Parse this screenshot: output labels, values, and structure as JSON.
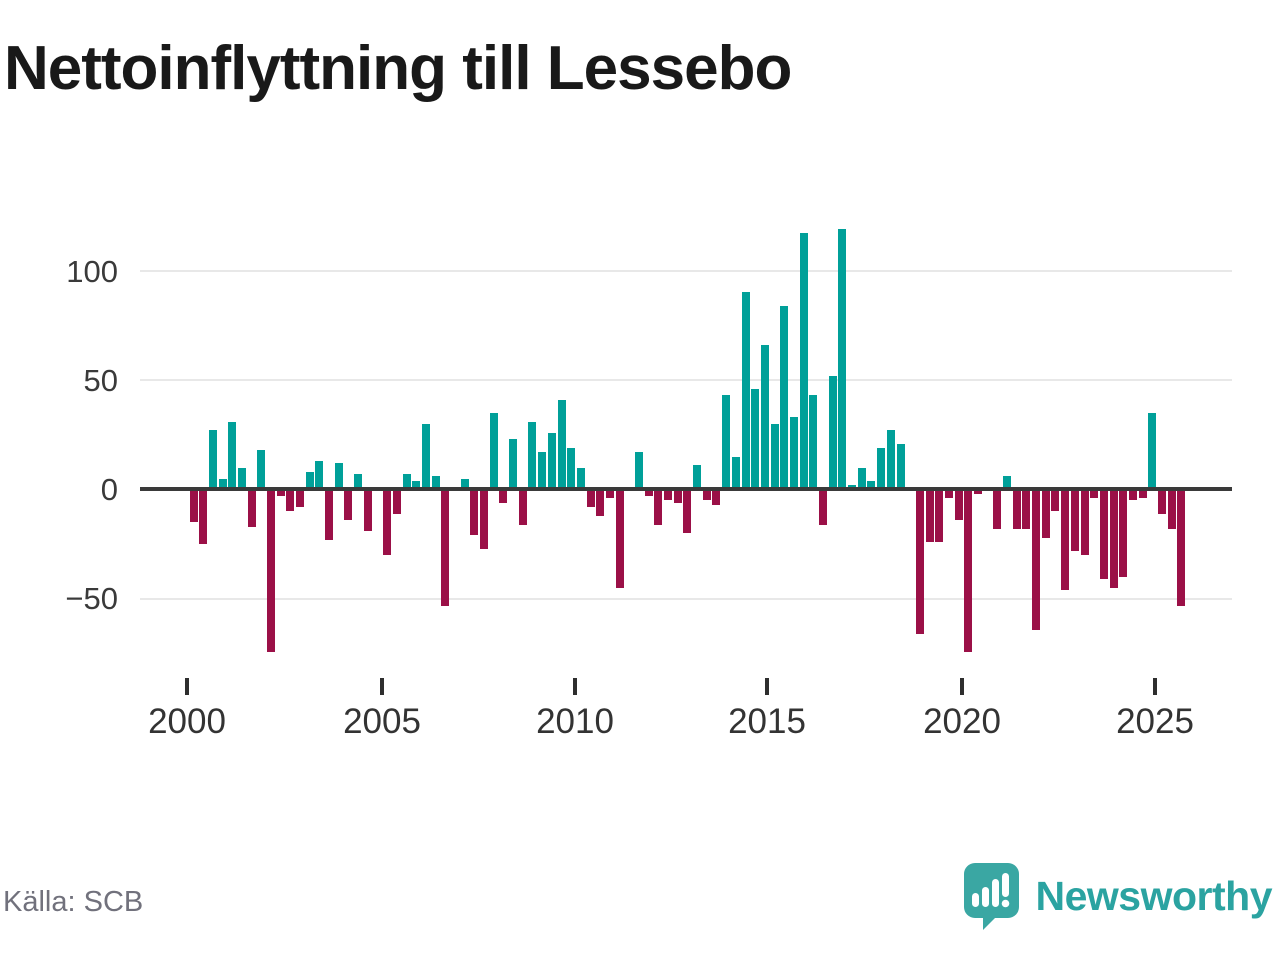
{
  "title": "Nettoinflyttning till Lessebo",
  "source": "Källa: SCB",
  "branding": {
    "logo_text": "Newsworthy",
    "logo_icon": "bar-chart-speech-bubble-icon"
  },
  "colors": {
    "positive": "#00a099",
    "negative": "#9b1047",
    "axis": "#3a3a3a",
    "grid": "#e8e8e8",
    "brand_teal": "#3aa7a3"
  },
  "chart_data": {
    "type": "bar",
    "title": "Nettoinflyttning till Lessebo",
    "xlabel": "",
    "ylabel": "",
    "frequency": "quarterly",
    "grid": "horizontal",
    "legend": "none",
    "ylim": [
      -80,
      128
    ],
    "y_ticks": [
      100,
      50,
      0,
      -50
    ],
    "y_tick_labels": [
      "100",
      "50",
      "0",
      "−50"
    ],
    "x_tick_labels": [
      "2000",
      "2005",
      "2010",
      "2015",
      "2020",
      "2025"
    ],
    "x_tick_years": [
      2000,
      2005,
      2010,
      2015,
      2020,
      2025
    ],
    "quarters": [
      "2000Q1",
      "2000Q2",
      "2000Q3",
      "2000Q4",
      "2001Q1",
      "2001Q2",
      "2001Q3",
      "2001Q4",
      "2002Q1",
      "2002Q2",
      "2002Q3",
      "2002Q4",
      "2003Q1",
      "2003Q2",
      "2003Q3",
      "2003Q4",
      "2004Q1",
      "2004Q2",
      "2004Q3",
      "2004Q4",
      "2005Q1",
      "2005Q2",
      "2005Q3",
      "2005Q4",
      "2006Q1",
      "2006Q2",
      "2006Q3",
      "2006Q4",
      "2007Q1",
      "2007Q2",
      "2007Q3",
      "2007Q4",
      "2008Q1",
      "2008Q2",
      "2008Q3",
      "2008Q4",
      "2009Q1",
      "2009Q2",
      "2009Q3",
      "2009Q4",
      "2010Q1",
      "2010Q2",
      "2010Q3",
      "2010Q4",
      "2011Q1",
      "2011Q2",
      "2011Q3",
      "2011Q4",
      "2012Q1",
      "2012Q2",
      "2012Q3",
      "2012Q4",
      "2013Q1",
      "2013Q2",
      "2013Q3",
      "2013Q4",
      "2014Q1",
      "2014Q2",
      "2014Q3",
      "2014Q4",
      "2015Q1",
      "2015Q2",
      "2015Q3",
      "2015Q4",
      "2016Q1",
      "2016Q2",
      "2016Q3",
      "2016Q4",
      "2017Q1",
      "2017Q2",
      "2017Q3",
      "2017Q4",
      "2018Q1",
      "2018Q2",
      "2018Q3",
      "2018Q4",
      "2019Q1",
      "2019Q2",
      "2019Q3",
      "2019Q4",
      "2020Q1",
      "2020Q2",
      "2020Q3",
      "2020Q4",
      "2021Q1",
      "2021Q2",
      "2021Q3",
      "2021Q4",
      "2022Q1",
      "2022Q2",
      "2022Q3",
      "2022Q4",
      "2023Q1",
      "2023Q2",
      "2023Q3",
      "2023Q4",
      "2024Q1",
      "2024Q2",
      "2024Q3",
      "2024Q4",
      "2025Q1",
      "2025Q2",
      "2025Q3"
    ],
    "values": [
      -15,
      -25,
      27,
      5,
      31,
      10,
      -17,
      18,
      -74,
      -3,
      -10,
      -8,
      8,
      13,
      -23,
      12,
      -14,
      7,
      -19,
      0,
      -30,
      -11,
      7,
      4,
      30,
      6,
      -53,
      0,
      5,
      -21,
      -27,
      35,
      -6,
      23,
      -16,
      31,
      17,
      26,
      41,
      19,
      10,
      -8,
      -12,
      -4,
      -45,
      0,
      17,
      -3,
      -16,
      -5,
      -6,
      -20,
      11,
      -5,
      -7,
      43,
      15,
      90,
      46,
      66,
      30,
      84,
      33,
      117,
      43,
      -16,
      52,
      119,
      2,
      10,
      4,
      19,
      27,
      21,
      0,
      -66,
      -24,
      -24,
      -4,
      -14,
      -74,
      -2,
      0,
      -18,
      6,
      -18,
      -18,
      -64,
      -22,
      -10,
      -46,
      -28,
      -30,
      -4,
      -41,
      -45,
      -40,
      -5,
      -4,
      35,
      -11,
      -18,
      -53
    ]
  }
}
